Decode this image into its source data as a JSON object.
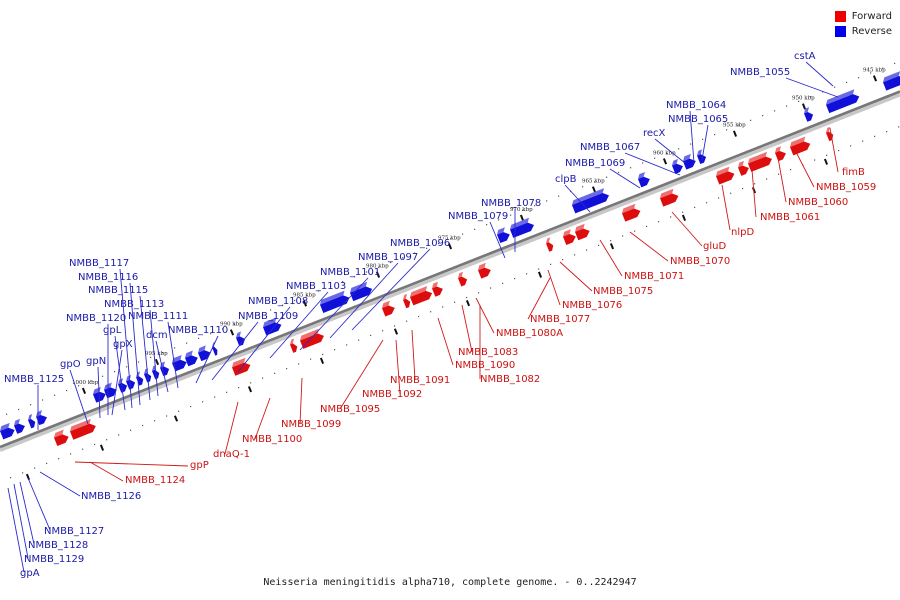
{
  "legend": {
    "forward_label": "Forward",
    "reverse_label": "Reverse",
    "forward_color": "#ee0000",
    "reverse_color": "#0000ee"
  },
  "caption": "Neisseria meningitidis alpha710, complete genome. - 0..2242947",
  "ticks": [
    "945 kbp",
    "950 kbp",
    "955 kbp",
    "960 kbp",
    "965 kbp",
    "970 kbp",
    "975 kbp",
    "980 kbp",
    "985 kbp",
    "990 kbp",
    "995 kbp",
    "1000 kbp"
  ],
  "reverse_labels": [
    "NMBB_1055",
    "cstA",
    "NMBB_1064",
    "NMBB_1065",
    "recX",
    "NMBB_1067",
    "NMBB_1069",
    "clpB",
    "NMBB_1078",
    "NMBB_1079",
    "NMBB_1096",
    "NMBB_1097",
    "NMBB_1101",
    "NMBB_1103",
    "NMBB_1108",
    "NMBB_1109",
    "NMBB_1110",
    "NMBB_1111",
    "dcm",
    "NMBB_1113",
    "NMBB_1115",
    "NMBB_1116",
    "NMBB_1117",
    "gpL",
    "NMBB_1120",
    "gpX",
    "gpN",
    "gpO",
    "NMBB_1125",
    "NMBB_1126",
    "NMBB_1127",
    "NMBB_1128",
    "NMBB_1129",
    "gpA"
  ],
  "forward_labels": [
    "fimB",
    "NMBB_1059",
    "NMBB_1060",
    "NMBB_1061",
    "nlpD",
    "gluD",
    "NMBB_1070",
    "NMBB_1071",
    "NMBB_1075",
    "NMBB_1076",
    "NMBB_1077",
    "NMBB_1080A",
    "NMBB_1083",
    "NMBB_1082",
    "NMBB_1090",
    "NMBB_1091",
    "NMBB_1092",
    "NMBB_1095",
    "NMBB_1099",
    "NMBB_1100",
    "dnaQ-1",
    "gpP",
    "NMBB_1124"
  ]
}
